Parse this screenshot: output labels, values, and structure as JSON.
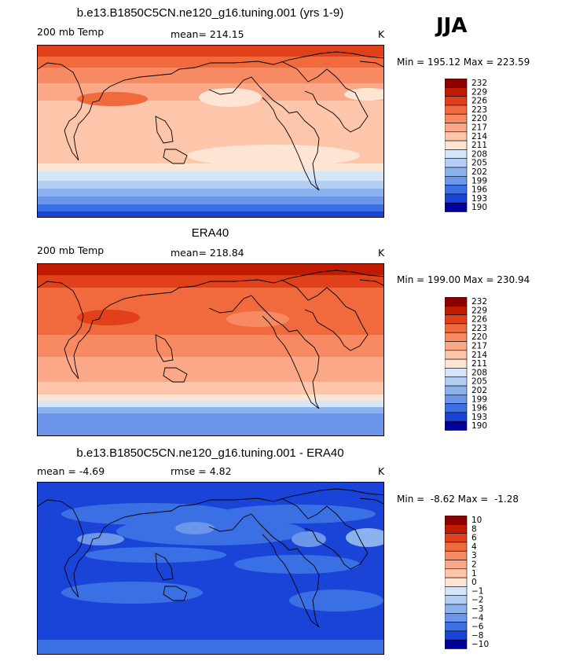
{
  "season": "JJA",
  "panels": [
    {
      "title": "b.e13.B1850C5CN.ne120_g16.tuning.001 (yrs 1-9)",
      "left_label": "200 mb Temp",
      "mid_label": "mean=  214.15",
      "units": "K",
      "minmax": "Min = 195.12 Max = 223.59"
    },
    {
      "title": "ERA40",
      "left_label": "200 mb Temp",
      "mid_label": "mean=  218.84",
      "units": "K",
      "minmax": "Min = 199.00 Max = 230.94"
    },
    {
      "title": "b.e13.B1850C5CN.ne120_g16.tuning.001 - ERA40",
      "left_label": "mean =   -4.69",
      "mid_label": "rmse =    4.82",
      "units": "K",
      "minmax": "Min =  -8.62 Max =  -1.28"
    }
  ],
  "chart_data": [
    {
      "type": "heatmap",
      "title": "b.e13.B1850C5CN.ne120_g16.tuning.001 (yrs 1-9)",
      "variable": "200 mb Temp",
      "units": "K",
      "mean": 214.15,
      "min": 195.12,
      "max": 223.59,
      "legend_levels": [
        "232",
        "229",
        "226",
        "223",
        "220",
        "217",
        "214",
        "211",
        "208",
        "205",
        "202",
        "199",
        "196",
        "193",
        "190"
      ],
      "legend_colors": [
        "#8b0000",
        "#c01a00",
        "#e0401a",
        "#f06a3e",
        "#f78a63",
        "#fba888",
        "#fdc6ab",
        "#fde4d3",
        "#d6e6f8",
        "#b4cff4",
        "#8cb2ee",
        "#6b96ea",
        "#3b6fe4",
        "#1a44d8",
        "#00009a"
      ]
    },
    {
      "type": "heatmap",
      "title": "ERA40",
      "variable": "200 mb Temp",
      "units": "K",
      "mean": 218.84,
      "min": 199.0,
      "max": 230.94,
      "legend_levels": [
        "232",
        "229",
        "226",
        "223",
        "220",
        "217",
        "214",
        "211",
        "208",
        "205",
        "202",
        "199",
        "196",
        "193",
        "190"
      ],
      "legend_colors": [
        "#8b0000",
        "#c01a00",
        "#e0401a",
        "#f06a3e",
        "#f78a63",
        "#fba888",
        "#fdc6ab",
        "#fde4d3",
        "#d6e6f8",
        "#b4cff4",
        "#8cb2ee",
        "#6b96ea",
        "#3b6fe4",
        "#1a44d8",
        "#00009a"
      ]
    },
    {
      "type": "heatmap",
      "title": "b.e13.B1850C5CN.ne120_g16.tuning.001 - ERA40",
      "units": "K",
      "mean": -4.69,
      "rmse": 4.82,
      "min": -8.62,
      "max": -1.28,
      "legend_levels": [
        "10",
        "8",
        "6",
        "4",
        "3",
        "2",
        "1",
        "0",
        "−1",
        "−2",
        "−3",
        "−4",
        "−6",
        "−8",
        "−10"
      ],
      "legend_colors": [
        "#8b0000",
        "#c01a00",
        "#e0401a",
        "#f06a3e",
        "#f78a63",
        "#fba888",
        "#fdc6ab",
        "#fde4d3",
        "#d6e6f8",
        "#b4cff4",
        "#8cb2ee",
        "#6b96ea",
        "#3b6fe4",
        "#1a44d8",
        "#00009a"
      ]
    }
  ]
}
